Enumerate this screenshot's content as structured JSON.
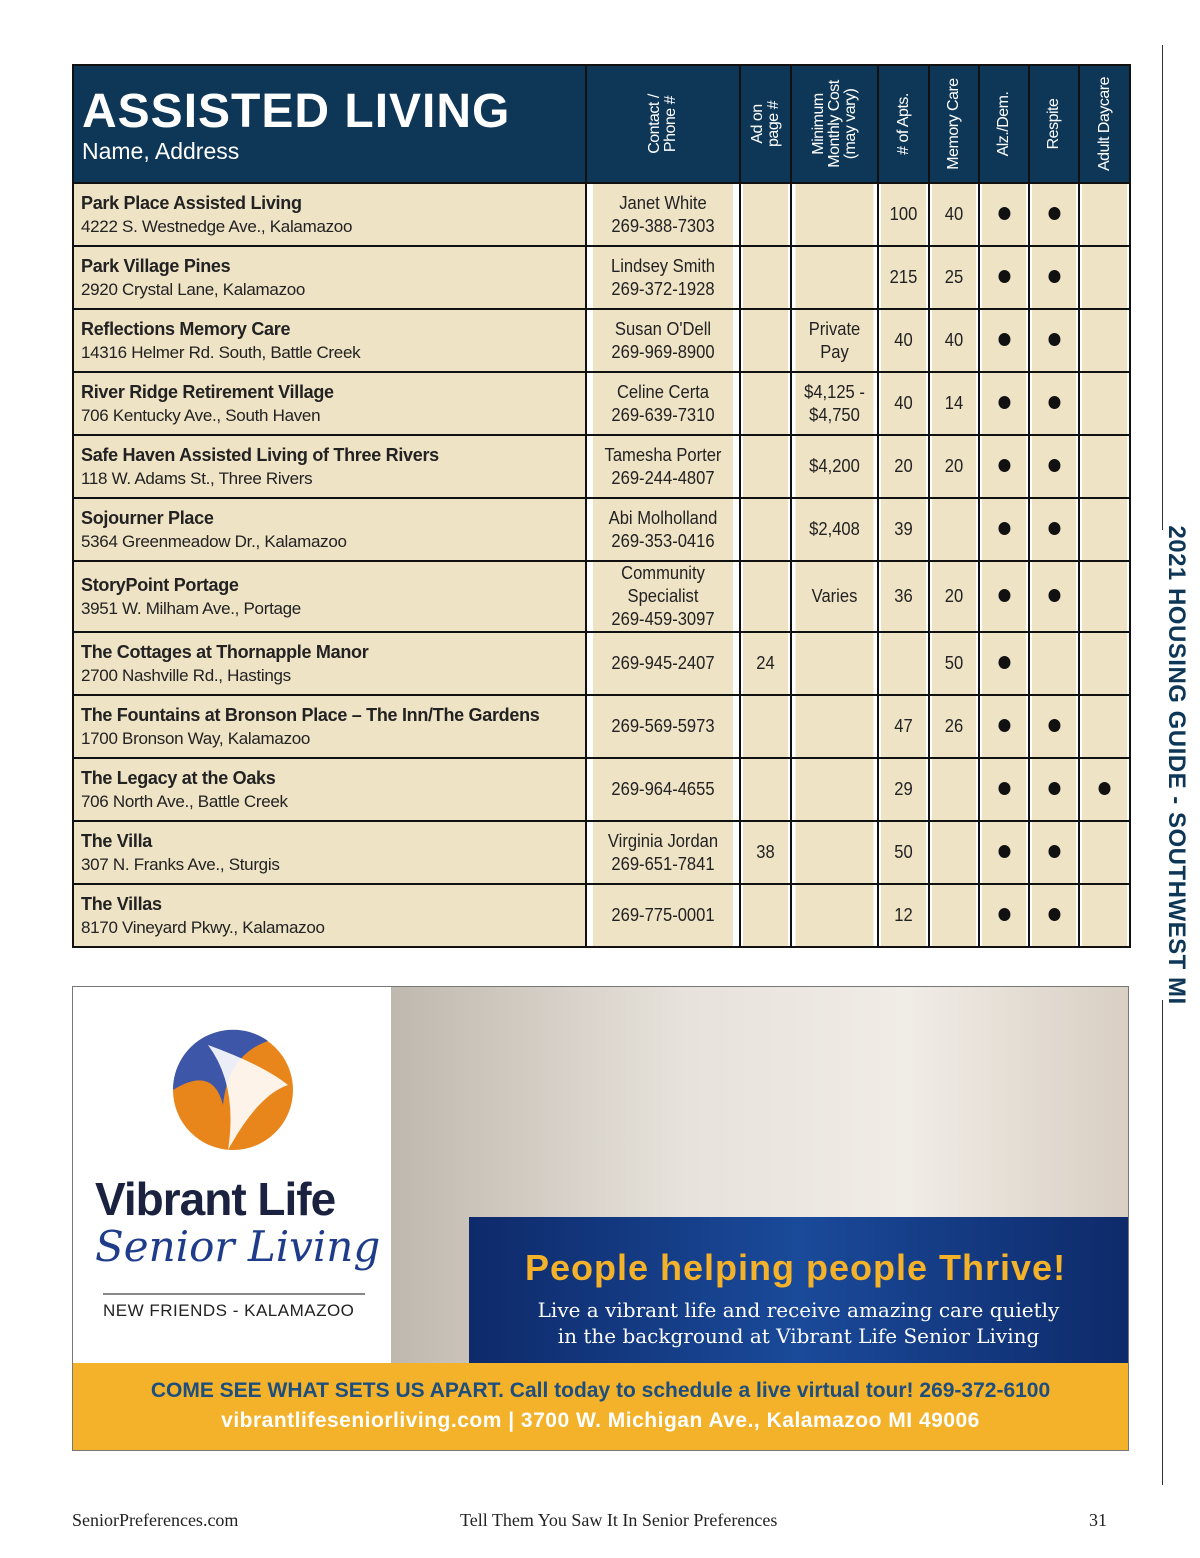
{
  "header": {
    "title": "ASSISTED LIVING",
    "subtitle": "Name, Address",
    "columns": [
      "Contact /\nPhone #",
      "Ad on\npage #",
      "Minimum\nMonthly Cost\n(may vary)",
      "# of Apts.",
      "Memory Care",
      "Alz./Dem.",
      "Respite",
      "Adult Daycare"
    ]
  },
  "rows": [
    {
      "name": "Park Place Assisted Living",
      "address": "4222 S. Westnedge Ave., Kalamazoo",
      "contact": "Janet White",
      "phone": "269-388-7303",
      "ad": "",
      "cost": "",
      "apts": "100",
      "memory": "40",
      "alz": true,
      "respite": true,
      "daycare": false
    },
    {
      "name": "Park Village Pines",
      "address": "2920 Crystal Lane, Kalamazoo",
      "contact": "Lindsey Smith",
      "phone": "269-372-1928",
      "ad": "",
      "cost": "",
      "apts": "215",
      "memory": "25",
      "alz": true,
      "respite": true,
      "daycare": false
    },
    {
      "name": "Reflections Memory Care",
      "address": "14316 Helmer Rd. South, Battle Creek",
      "contact": "Susan O'Dell",
      "phone": "269-969-8900",
      "ad": "",
      "cost": "Private Pay",
      "apts": "40",
      "memory": "40",
      "alz": true,
      "respite": true,
      "daycare": false
    },
    {
      "name": "River Ridge Retirement Village",
      "address": "706 Kentucky Ave., South Haven",
      "contact": "Celine Certa",
      "phone": "269-639-7310",
      "ad": "",
      "cost": "$4,125 - $4,750",
      "apts": "40",
      "memory": "14",
      "alz": true,
      "respite": true,
      "daycare": false
    },
    {
      "name": "Safe Haven Assisted Living of Three Rivers",
      "address": "118 W. Adams St., Three Rivers",
      "contact": "Tamesha Porter",
      "phone": "269-244-4807",
      "ad": "",
      "cost": "$4,200",
      "apts": "20",
      "memory": "20",
      "alz": true,
      "respite": true,
      "daycare": false
    },
    {
      "name": "Sojourner Place",
      "address": "5364 Greenmeadow Dr., Kalamazoo",
      "contact": "Abi Molholland",
      "phone": "269-353-0416",
      "ad": "",
      "cost": "$2,408",
      "apts": "39",
      "memory": "",
      "alz": true,
      "respite": true,
      "daycare": false
    },
    {
      "name": "StoryPoint Portage",
      "address": "3951 W. Milham Ave., Portage",
      "contact": "Community Specialist",
      "phone": "269-459-3097",
      "ad": "",
      "cost": "Varies",
      "apts": "36",
      "memory": "20",
      "alz": true,
      "respite": true,
      "daycare": false
    },
    {
      "name": "The Cottages at Thornapple Manor",
      "address": "2700 Nashville Rd., Hastings",
      "contact": "",
      "phone": "269-945-2407",
      "ad": "24",
      "cost": "",
      "apts": "",
      "memory": "50",
      "alz": true,
      "respite": false,
      "daycare": false
    },
    {
      "name": "The Fountains at Bronson Place – The Inn/The Gardens",
      "address": "1700 Bronson Way, Kalamazoo",
      "contact": "",
      "phone": "269-569-5973",
      "ad": "",
      "cost": "",
      "apts": "47",
      "memory": "26",
      "alz": true,
      "respite": true,
      "daycare": false
    },
    {
      "name": "The Legacy at the Oaks",
      "address": "706 North Ave., Battle Creek",
      "contact": "",
      "phone": "269-964-4655",
      "ad": "",
      "cost": "",
      "apts": "29",
      "memory": "",
      "alz": true,
      "respite": true,
      "daycare": true
    },
    {
      "name": "The Villa",
      "address": "307 N. Franks Ave., Sturgis",
      "contact": "Virginia Jordan",
      "phone": "269-651-7841",
      "ad": "38",
      "cost": "",
      "apts": "50",
      "memory": "",
      "alz": true,
      "respite": true,
      "daycare": false
    },
    {
      "name": "The Villas",
      "address": "8170 Vineyard Pkwy., Kalamazoo",
      "contact": "",
      "phone": "269-775-0001",
      "ad": "",
      "cost": "",
      "apts": "12",
      "memory": "",
      "alz": true,
      "respite": true,
      "daycare": false
    }
  ],
  "side_label": "2021 HOUSING GUIDE - SOUTHWEST MI",
  "ad": {
    "brand_line1": "Vibrant Life",
    "brand_line2": "Senior Living",
    "brand_tagline": "NEW FRIENDS - KALAMAZOO",
    "headline": "People helping people Thrive!",
    "body_line1": "Live a vibrant life and receive amazing care quietly",
    "body_line2": "in the background at Vibrant Life Senior Living",
    "cta": "COME SEE WHAT SETS US APART. Call today to schedule a live virtual tour! 269-372-6100",
    "contact": "vibrantlifeseniorliving.com |  3700 W. Michigan Ave., Kalamazoo MI 49006",
    "colors": {
      "navy": "#0e3757",
      "gold": "#f3b229",
      "cream": "#efe3c6"
    }
  },
  "footer": {
    "left": "SeniorPreferences.com",
    "center": "Tell Them You Saw It In Senior Preferences",
    "page": "31"
  }
}
